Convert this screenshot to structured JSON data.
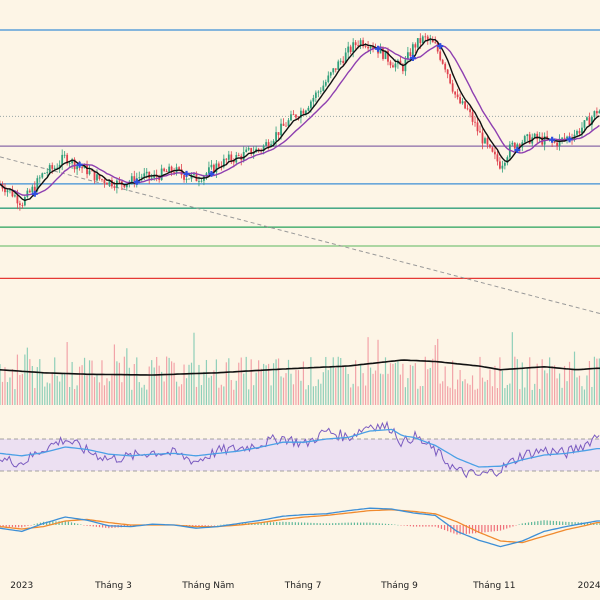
{
  "colors": {
    "background": "#fdf5e6",
    "up": "#2e9e7a",
    "down": "#e0424e",
    "ma_fast": "#111111",
    "ma_slow": "#8e3fb0",
    "marker": "#2f4fe0",
    "rsi": "#7a5bc0",
    "rsi_ma": "#4aa0e6",
    "rsi_band": "#ece0f2",
    "macd": "#3d8fd6",
    "signal": "#f08a2e",
    "volume_ma": "#111111"
  },
  "chart_data": {
    "type": "candlestick",
    "x_axis": {
      "tick_labels": [
        "2023",
        "Tháng 3",
        "Tháng Năm",
        "Tháng 7",
        "Tháng 9",
        "Tháng 11",
        "2024"
      ],
      "tick_days": [
        0,
        59,
        120,
        181,
        243,
        304,
        365
      ],
      "range_days": [
        -14,
        372
      ]
    },
    "price": {
      "domain": [
        0,
        100
      ],
      "anchors": [
        [
          -14,
          43
        ],
        [
          -7,
          40
        ],
        [
          0,
          36
        ],
        [
          7,
          41
        ],
        [
          14,
          47
        ],
        [
          21,
          49
        ],
        [
          28,
          53
        ],
        [
          35,
          50
        ],
        [
          42,
          48
        ],
        [
          49,
          45
        ],
        [
          56,
          44
        ],
        [
          63,
          43
        ],
        [
          70,
          44
        ],
        [
          77,
          46
        ],
        [
          84,
          45
        ],
        [
          91,
          47
        ],
        [
          98,
          48
        ],
        [
          105,
          46
        ],
        [
          112,
          45
        ],
        [
          119,
          47
        ],
        [
          126,
          50
        ],
        [
          133,
          52
        ],
        [
          140,
          53
        ],
        [
          147,
          55
        ],
        [
          154,
          56
        ],
        [
          161,
          60
        ],
        [
          168,
          64
        ],
        [
          175,
          68
        ],
        [
          182,
          71
        ],
        [
          189,
          76
        ],
        [
          196,
          81
        ],
        [
          203,
          87
        ],
        [
          210,
          92
        ],
        [
          217,
          96
        ],
        [
          224,
          95
        ],
        [
          231,
          92
        ],
        [
          238,
          88
        ],
        [
          245,
          86
        ],
        [
          252,
          94
        ],
        [
          259,
          97
        ],
        [
          266,
          94
        ],
        [
          273,
          86
        ],
        [
          280,
          74
        ],
        [
          287,
          70
        ],
        [
          294,
          62
        ],
        [
          301,
          55
        ],
        [
          308,
          50
        ],
        [
          315,
          57
        ],
        [
          322,
          59
        ],
        [
          329,
          60
        ],
        [
          336,
          59
        ],
        [
          343,
          58
        ],
        [
          350,
          60
        ],
        [
          357,
          62
        ],
        [
          364,
          66
        ],
        [
          370,
          70
        ]
      ],
      "horizontal_levels": [
        {
          "value": 100,
          "color": "#3d8fd6"
        },
        {
          "value": 68,
          "color": "#9aa6a6",
          "style": "dotted"
        },
        {
          "value": 57,
          "color": "#8a6aa8"
        },
        {
          "value": 43,
          "color": "#3d8fd6"
        },
        {
          "value": 34,
          "color": "#2e9e7a"
        },
        {
          "value": 27,
          "color": "#27a25a"
        },
        {
          "value": 20,
          "color": "#7cc37a"
        },
        {
          "value": 8,
          "color": "#e53935"
        }
      ],
      "trendline": {
        "from": [
          -14,
          53
        ],
        "to": [
          372,
          -5
        ],
        "style": "dashed"
      }
    },
    "volume": {
      "max": 100,
      "ma_anchors": [
        [
          -14,
          47
        ],
        [
          14,
          43
        ],
        [
          42,
          41
        ],
        [
          84,
          40
        ],
        [
          126,
          43
        ],
        [
          168,
          48
        ],
        [
          210,
          52
        ],
        [
          245,
          60
        ],
        [
          266,
          58
        ],
        [
          294,
          52
        ],
        [
          308,
          47
        ],
        [
          336,
          51
        ],
        [
          357,
          47
        ],
        [
          370,
          49
        ]
      ]
    },
    "rsi": {
      "range": [
        0,
        100
      ],
      "bands": [
        70,
        30
      ],
      "anchors": [
        [
          -14,
          45
        ],
        [
          0,
          40
        ],
        [
          14,
          58
        ],
        [
          28,
          70
        ],
        [
          42,
          55
        ],
        [
          56,
          45
        ],
        [
          70,
          48
        ],
        [
          84,
          54
        ],
        [
          98,
          52
        ],
        [
          112,
          42
        ],
        [
          126,
          55
        ],
        [
          140,
          58
        ],
        [
          154,
          64
        ],
        [
          168,
          72
        ],
        [
          182,
          63
        ],
        [
          196,
          80
        ],
        [
          210,
          72
        ],
        [
          224,
          88
        ],
        [
          238,
          84
        ],
        [
          245,
          64
        ],
        [
          252,
          74
        ],
        [
          266,
          55
        ],
        [
          280,
          30
        ],
        [
          294,
          24
        ],
        [
          308,
          32
        ],
        [
          322,
          50
        ],
        [
          336,
          56
        ],
        [
          350,
          52
        ],
        [
          364,
          65
        ],
        [
          370,
          75
        ]
      ],
      "ma_anchors": [
        [
          -14,
          52
        ],
        [
          0,
          49
        ],
        [
          14,
          53
        ],
        [
          28,
          60
        ],
        [
          42,
          57
        ],
        [
          56,
          51
        ],
        [
          70,
          49
        ],
        [
          84,
          51
        ],
        [
          98,
          52
        ],
        [
          112,
          49
        ],
        [
          126,
          52
        ],
        [
          140,
          55
        ],
        [
          154,
          60
        ],
        [
          168,
          66
        ],
        [
          182,
          66
        ],
        [
          196,
          70
        ],
        [
          210,
          72
        ],
        [
          224,
          80
        ],
        [
          238,
          82
        ],
        [
          245,
          74
        ],
        [
          252,
          72
        ],
        [
          266,
          62
        ],
        [
          280,
          46
        ],
        [
          294,
          35
        ],
        [
          308,
          36
        ],
        [
          322,
          44
        ],
        [
          336,
          50
        ],
        [
          350,
          52
        ],
        [
          364,
          56
        ],
        [
          370,
          58
        ]
      ]
    },
    "macd": {
      "range": [
        -3,
        3
      ],
      "macd_anchors": [
        [
          -14,
          -0.4
        ],
        [
          0,
          -0.8
        ],
        [
          14,
          0.2
        ],
        [
          28,
          1.0
        ],
        [
          42,
          0.6
        ],
        [
          56,
          -0.1
        ],
        [
          70,
          -0.2
        ],
        [
          84,
          0.1
        ],
        [
          98,
          0.0
        ],
        [
          112,
          -0.4
        ],
        [
          126,
          -0.2
        ],
        [
          140,
          0.2
        ],
        [
          154,
          0.6
        ],
        [
          168,
          1.1
        ],
        [
          182,
          1.3
        ],
        [
          196,
          1.4
        ],
        [
          210,
          1.8
        ],
        [
          224,
          2.1
        ],
        [
          238,
          2.0
        ],
        [
          252,
          1.5
        ],
        [
          266,
          1.2
        ],
        [
          280,
          -0.8
        ],
        [
          294,
          -1.9
        ],
        [
          308,
          -2.7
        ],
        [
          322,
          -2.0
        ],
        [
          336,
          -0.8
        ],
        [
          350,
          -0.2
        ],
        [
          364,
          0.3
        ],
        [
          370,
          0.5
        ]
      ],
      "signal_anchors": [
        [
          -14,
          -0.2
        ],
        [
          0,
          -0.5
        ],
        [
          14,
          -0.2
        ],
        [
          28,
          0.5
        ],
        [
          42,
          0.7
        ],
        [
          56,
          0.3
        ],
        [
          70,
          0.0
        ],
        [
          84,
          0.0
        ],
        [
          98,
          0.0
        ],
        [
          112,
          -0.2
        ],
        [
          126,
          -0.2
        ],
        [
          140,
          0.0
        ],
        [
          154,
          0.3
        ],
        [
          168,
          0.7
        ],
        [
          182,
          1.0
        ],
        [
          196,
          1.2
        ],
        [
          210,
          1.5
        ],
        [
          224,
          1.8
        ],
        [
          238,
          1.9
        ],
        [
          252,
          1.7
        ],
        [
          266,
          1.4
        ],
        [
          280,
          0.4
        ],
        [
          294,
          -0.9
        ],
        [
          308,
          -2.0
        ],
        [
          322,
          -2.2
        ],
        [
          336,
          -1.4
        ],
        [
          350,
          -0.6
        ],
        [
          364,
          0.0
        ],
        [
          370,
          0.3
        ]
      ]
    }
  }
}
